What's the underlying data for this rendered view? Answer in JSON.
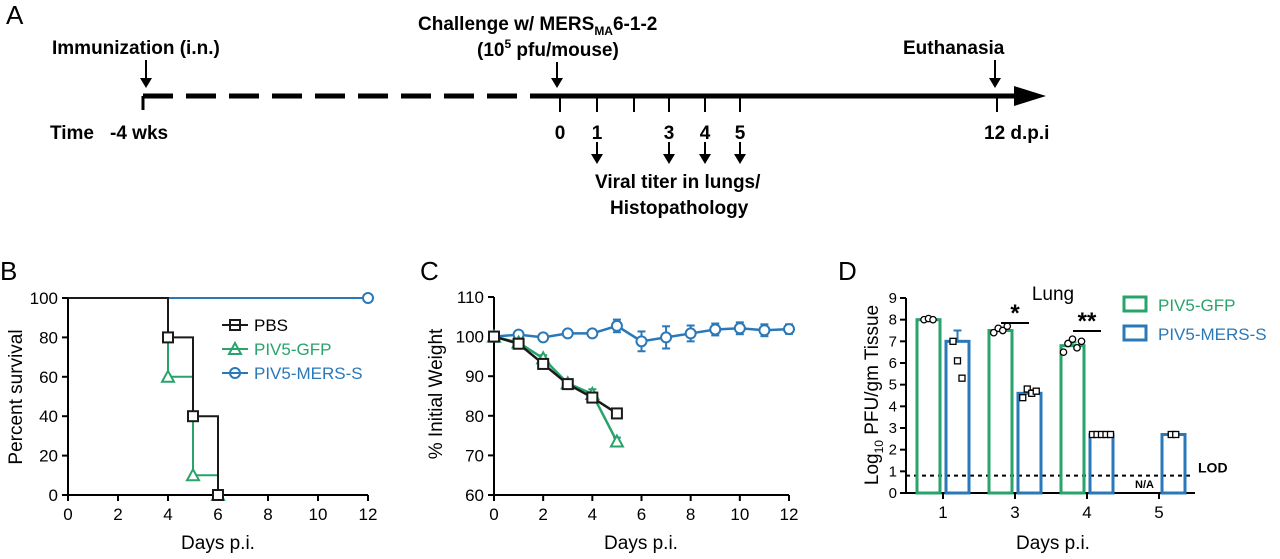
{
  "panel_letters": {
    "a": "A",
    "b": "B",
    "c": "C",
    "d": "D"
  },
  "timeline": {
    "immunization": "Immunization (i.n.)",
    "challenge_prefix": "Challenge w/ MERS",
    "challenge_sub": "MA",
    "challenge_suffix": "6-1-2",
    "dose_prefix": "(10",
    "dose_sup": "5",
    "dose_suffix": " pfu/mouse)",
    "euthanasia": "Euthanasia",
    "time_label": "Time",
    "time_start": "-4 wks",
    "days": [
      "0",
      "1",
      "3",
      "4",
      "5"
    ],
    "end_label": "12 d.p.i",
    "sampling_line1": "Viral titer in lungs/",
    "sampling_line2": "Histopathology"
  },
  "colors": {
    "pbs": "#1a1a1a",
    "gfp": "#27a36b",
    "mers": "#2a78b8"
  },
  "chart_data": [
    {
      "panel": "B",
      "type": "line",
      "xlabel": "Days p.i.",
      "ylabel": "Percent survival",
      "xlim": [
        0,
        12
      ],
      "ylim": [
        0,
        100
      ],
      "xticks": [
        "0",
        "2",
        "4",
        "6",
        "8",
        "10",
        "12"
      ],
      "yticks": [
        "0",
        "20",
        "40",
        "60",
        "80",
        "100"
      ],
      "legend": "top-right",
      "step": true,
      "series": [
        {
          "name": "PBS",
          "marker": "square",
          "x": [
            0,
            4,
            5,
            6
          ],
          "y": [
            100,
            80,
            40,
            0
          ]
        },
        {
          "name": "PIV5-GFP",
          "marker": "triangle",
          "x": [
            0,
            4,
            5,
            6
          ],
          "y": [
            100,
            60,
            10,
            0
          ]
        },
        {
          "name": "PIV5-MERS-S",
          "marker": "circle",
          "x": [
            0,
            12
          ],
          "y": [
            100,
            100
          ]
        }
      ]
    },
    {
      "panel": "C",
      "type": "line",
      "xlabel": "Days p.i.",
      "ylabel": "% Initial Weight",
      "xlim": [
        0,
        12
      ],
      "ylim": [
        60,
        110
      ],
      "xticks": [
        "0",
        "2",
        "4",
        "6",
        "8",
        "10",
        "12"
      ],
      "yticks": [
        "60",
        "70",
        "80",
        "90",
        "100",
        "110"
      ],
      "series": [
        {
          "name": "PBS",
          "marker": "square",
          "x": [
            0,
            1,
            2,
            3,
            4,
            5
          ],
          "y": [
            100,
            98.2,
            93.1,
            88.0,
            84.6,
            80.6
          ],
          "err": [
            0,
            0.8,
            0.8,
            0.8,
            1.0,
            1.0
          ]
        },
        {
          "name": "PIV5-GFP",
          "marker": "triangle",
          "x": [
            0,
            1,
            2,
            3,
            4,
            5
          ],
          "y": [
            100,
            98.5,
            94.5,
            88.2,
            85.5,
            73.5
          ],
          "err": [
            0,
            0.8,
            0.8,
            0.8,
            1.2,
            1.0
          ]
        },
        {
          "name": "PIV5-MERS-S",
          "marker": "circle",
          "x": [
            0,
            1,
            2,
            3,
            4,
            5,
            6,
            7,
            8,
            9,
            10,
            11,
            12
          ],
          "y": [
            100,
            100.5,
            99.8,
            100.8,
            100.8,
            102.7,
            98.8,
            99.8,
            100.8,
            101.8,
            102.1,
            101.6,
            101.9
          ],
          "err": [
            0,
            0.8,
            0.8,
            0.8,
            0.8,
            1.6,
            2.5,
            2.8,
            2.0,
            1.5,
            1.5,
            1.5,
            1.2
          ]
        }
      ]
    },
    {
      "panel": "D",
      "type": "bar",
      "title": "Lung",
      "xlabel": "Days p.i.",
      "ylabel_prefix": "Log",
      "ylabel_sub": "10",
      "ylabel_suffix": " PFU/gm Tissue",
      "ylim": [
        0,
        9
      ],
      "yticks": [
        "0",
        "1",
        "2",
        "3",
        "4",
        "5",
        "6",
        "7",
        "8",
        "9"
      ],
      "categories": [
        "1",
        "3",
        "4",
        "5"
      ],
      "lod": 0.8,
      "lod_label": "LOD",
      "na_label": "N/A",
      "significance": [
        {
          "category": "3",
          "label": "*"
        },
        {
          "category": "4",
          "label": "**"
        }
      ],
      "legend": "top-right",
      "series": [
        {
          "name": "PIV5-GFP",
          "values": [
            8.0,
            7.5,
            6.8,
            null
          ],
          "points": [
            [
              8.0,
              8.05,
              8.0
            ],
            [
              7.4,
              7.6,
              7.5,
              7.7
            ],
            [
              6.5,
              6.9,
              7.1,
              6.7,
              7.0
            ],
            []
          ],
          "err": [
            0.05,
            0.1,
            0.15,
            0
          ]
        },
        {
          "name": "PIV5-MERS-S",
          "values": [
            7.0,
            4.6,
            2.7,
            2.7
          ],
          "points": [
            [
              7.0,
              6.1,
              5.3
            ],
            [
              4.4,
              4.8,
              4.6,
              4.7
            ],
            [
              2.7,
              2.7,
              2.7,
              2.7,
              2.7
            ],
            [
              2.7,
              2.7
            ]
          ],
          "err": [
            0.5,
            0.15,
            0,
            0
          ]
        }
      ]
    }
  ]
}
